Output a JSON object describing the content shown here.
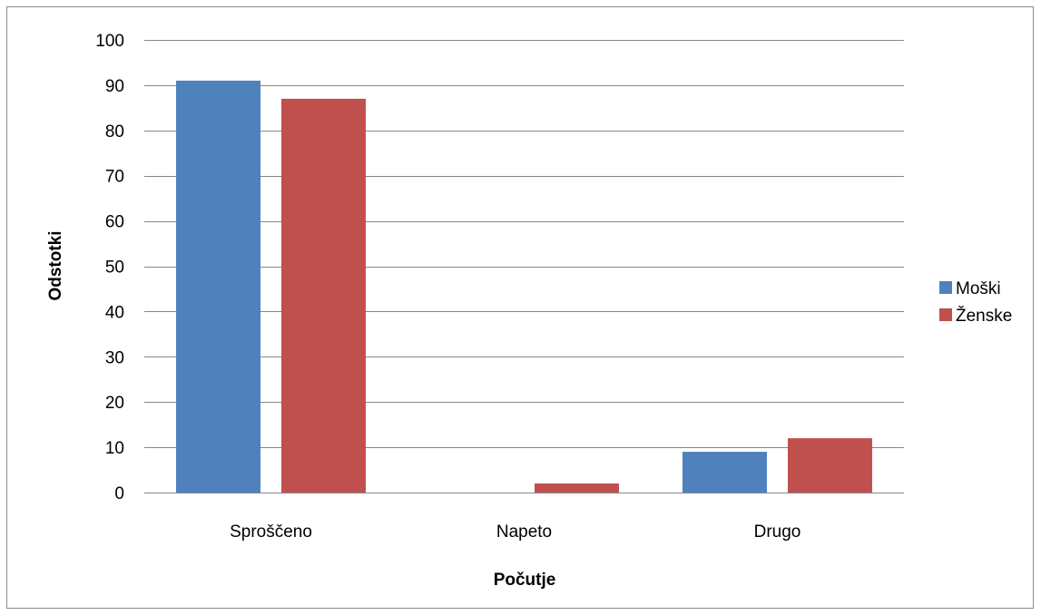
{
  "chart_data": {
    "type": "bar",
    "title": "",
    "xlabel": "Počutje",
    "ylabel": "Odstotki",
    "categories": [
      "Sproščeno",
      "Napeto",
      "Drugo"
    ],
    "series": [
      {
        "name": "Moški",
        "color": "#4f81bd",
        "values": [
          91,
          0,
          9
        ]
      },
      {
        "name": "Ženske",
        "color": "#c0504d",
        "values": [
          87,
          2,
          12
        ]
      }
    ],
    "ylim": [
      0,
      100
    ],
    "yticks": [
      0,
      10,
      20,
      30,
      40,
      50,
      60,
      70,
      80,
      90,
      100
    ],
    "grid": true,
    "grid_color": "#868686",
    "legend_position": "right"
  }
}
